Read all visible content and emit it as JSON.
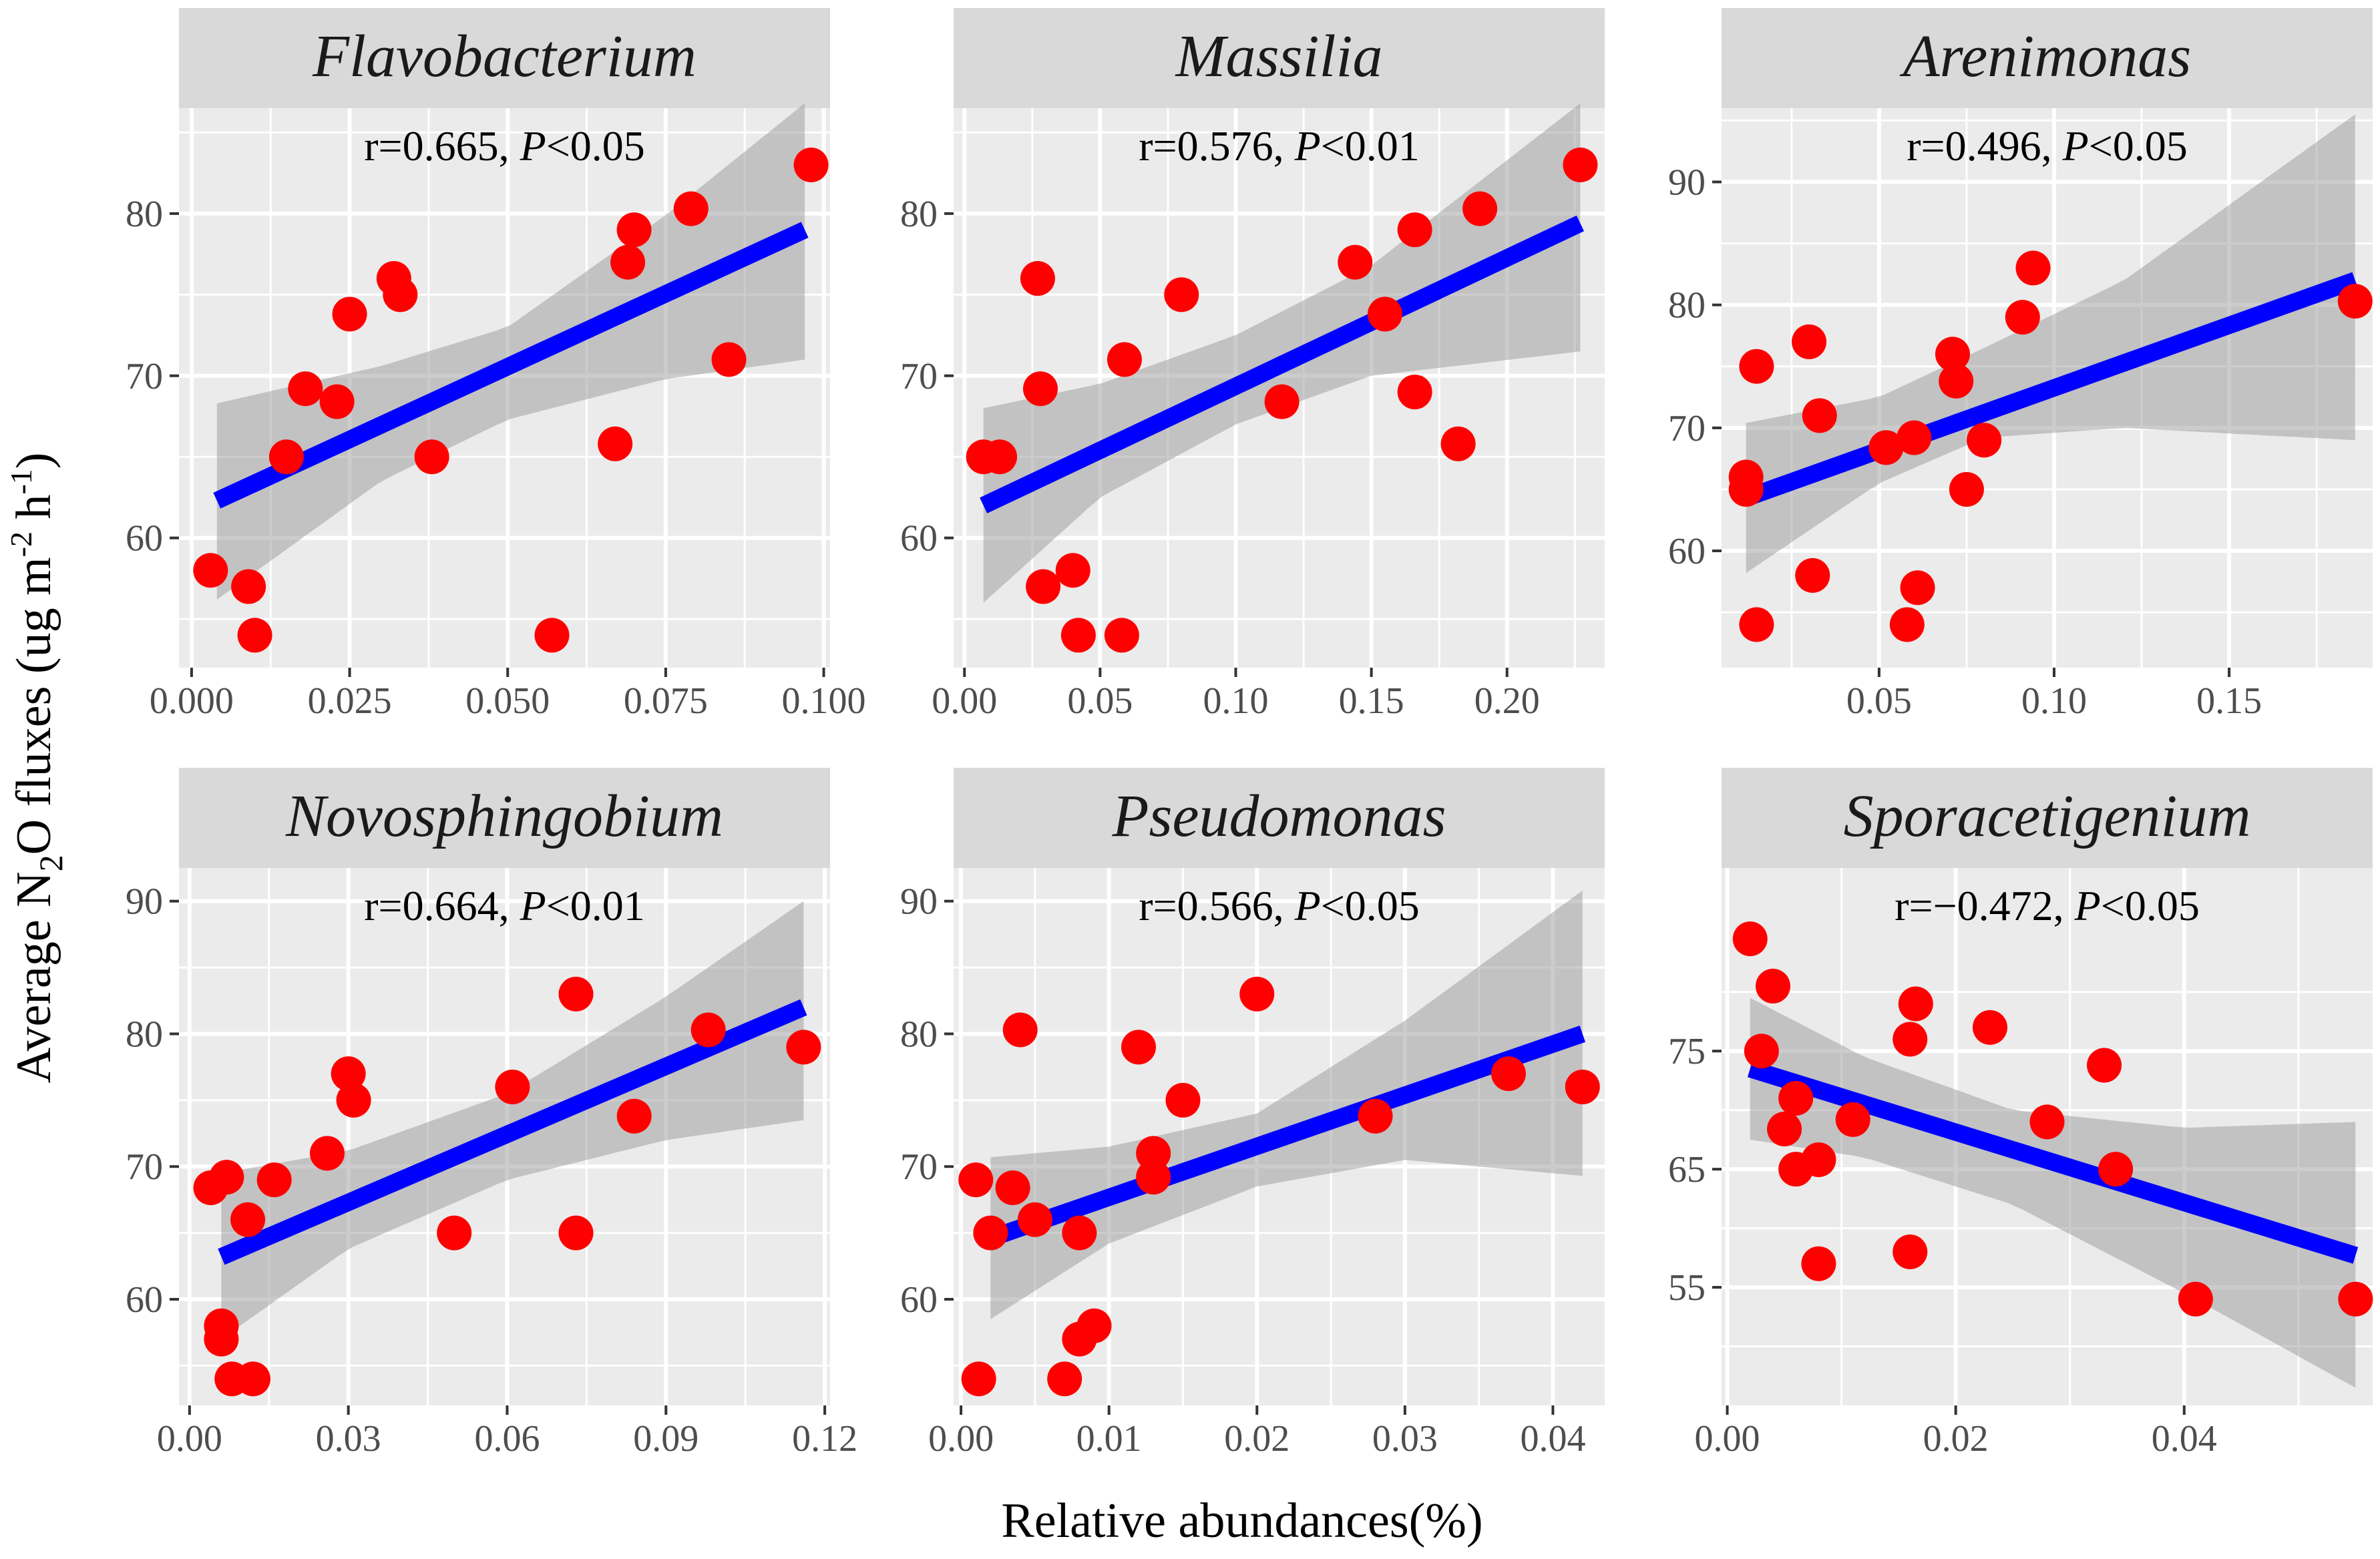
{
  "chart_data": {
    "type": "scatter",
    "layout": "facet grid 2x3 with linear fit and 95% confidence band",
    "xlabel": "Relative abundances(%)",
    "ylabel": "Average N2O fluxes (ug m-2 h-1)",
    "ylabel_parts": {
      "pre": "Average N",
      "sub": "2",
      "mid": "O fluxes (ug m",
      "sup1": "-2",
      "mid2": " h",
      "sup2": "-1",
      "post": ")"
    },
    "colors": {
      "points": "#ff0000",
      "fit": "#0000ff",
      "ci": "#999999",
      "panel": "#ebebeb",
      "strip": "#d9d9d9"
    },
    "panels": [
      {
        "title": "Flavobacterium",
        "stat_r": "r=0.665, ",
        "stat_p_label": "P",
        "stat_p_value": "<0.05",
        "xlim": [
          -0.002,
          0.101
        ],
        "ylim": [
          52,
          86.5
        ],
        "xticks": [
          0.0,
          0.025,
          0.05,
          0.075,
          0.1
        ],
        "xtick_labels": [
          "0.000",
          "0.025",
          "0.050",
          "0.075",
          "0.100"
        ],
        "yticks": [
          60,
          70,
          80
        ],
        "ytick_labels": [
          "60",
          "70",
          "80"
        ],
        "points": [
          [
            0.003,
            58
          ],
          [
            0.009,
            57
          ],
          [
            0.01,
            54
          ],
          [
            0.015,
            65
          ],
          [
            0.018,
            69.2
          ],
          [
            0.023,
            68.4
          ],
          [
            0.025,
            73.8
          ],
          [
            0.032,
            76
          ],
          [
            0.033,
            75
          ],
          [
            0.038,
            65
          ],
          [
            0.057,
            54
          ],
          [
            0.067,
            65.8
          ],
          [
            0.069,
            77
          ],
          [
            0.07,
            79
          ],
          [
            0.079,
            80.3
          ],
          [
            0.085,
            71
          ],
          [
            0.098,
            83
          ]
        ],
        "fit": {
          "x": [
            0.004,
            0.097
          ],
          "y": [
            62.3,
            79.0
          ]
        },
        "ci": {
          "x": [
            0.004,
            0.03,
            0.05,
            0.075,
            0.097
          ],
          "lower": [
            56.2,
            63.5,
            67.3,
            69.8,
            71.0
          ],
          "upper": [
            68.3,
            70.6,
            73.0,
            79.9,
            86.8
          ]
        }
      },
      {
        "title": "Massilia",
        "stat_r": "r=0.576, ",
        "stat_p_label": "P",
        "stat_p_value": "<0.01",
        "xlim": [
          -0.004,
          0.236
        ],
        "ylim": [
          52,
          86.5
        ],
        "xticks": [
          0.0,
          0.05,
          0.1,
          0.15,
          0.2
        ],
        "xtick_labels": [
          "0.00",
          "0.05",
          "0.10",
          "0.15",
          "0.20"
        ],
        "yticks": [
          60,
          70,
          80
        ],
        "ytick_labels": [
          "60",
          "70",
          "80"
        ],
        "points": [
          [
            0.007,
            65
          ],
          [
            0.013,
            65
          ],
          [
            0.027,
            76
          ],
          [
            0.028,
            69.2
          ],
          [
            0.029,
            57
          ],
          [
            0.04,
            58
          ],
          [
            0.042,
            54
          ],
          [
            0.058,
            54
          ],
          [
            0.059,
            71
          ],
          [
            0.08,
            75
          ],
          [
            0.117,
            68.4
          ],
          [
            0.144,
            77
          ],
          [
            0.155,
            73.8
          ],
          [
            0.166,
            79
          ],
          [
            0.166,
            69
          ],
          [
            0.182,
            65.8
          ],
          [
            0.19,
            80.3
          ],
          [
            0.227,
            83
          ]
        ],
        "fit": {
          "x": [
            0.007,
            0.227
          ],
          "y": [
            62.0,
            79.4
          ]
        },
        "ci": {
          "x": [
            0.007,
            0.05,
            0.1,
            0.15,
            0.227
          ],
          "lower": [
            56.0,
            62.5,
            67.0,
            70.0,
            71.5
          ],
          "upper": [
            68.0,
            69.5,
            72.5,
            76.8,
            86.8
          ]
        }
      },
      {
        "title": "Arenimonas",
        "stat_r": "r=0.496, ",
        "stat_p_label": "P",
        "stat_p_value": "<0.05",
        "xlim": [
          0.005,
          0.191
        ],
        "ylim": [
          50.5,
          96
        ],
        "xticks": [
          0.05,
          0.1,
          0.15
        ],
        "xtick_labels": [
          "0.05",
          "0.10",
          "0.15"
        ],
        "yticks": [
          60,
          70,
          80,
          90
        ],
        "ytick_labels": [
          "60",
          "70",
          "80",
          "90"
        ],
        "points": [
          [
            0.012,
            66
          ],
          [
            0.012,
            65
          ],
          [
            0.015,
            54
          ],
          [
            0.015,
            75
          ],
          [
            0.03,
            77
          ],
          [
            0.031,
            58
          ],
          [
            0.033,
            71
          ],
          [
            0.052,
            68.4
          ],
          [
            0.058,
            54
          ],
          [
            0.06,
            69.2
          ],
          [
            0.061,
            57
          ],
          [
            0.071,
            76
          ],
          [
            0.072,
            73.8
          ],
          [
            0.075,
            65
          ],
          [
            0.08,
            69
          ],
          [
            0.091,
            79
          ],
          [
            0.094,
            83
          ],
          [
            0.186,
            80.3
          ]
        ],
        "fit": {
          "x": [
            0.012,
            0.186
          ],
          "y": [
            64.3,
            82.0
          ]
        },
        "ci": {
          "x": [
            0.012,
            0.05,
            0.08,
            0.12,
            0.186
          ],
          "lower": [
            58.2,
            65.5,
            69.2,
            70.0,
            69.0
          ],
          "upper": [
            70.4,
            72.5,
            76.5,
            82.0,
            95.5
          ]
        }
      },
      {
        "title": "Novosphingobium",
        "stat_r": "r=0.664, ",
        "stat_p_label": "P",
        "stat_p_value": "<0.01",
        "xlim": [
          -0.002,
          0.121
        ],
        "ylim": [
          52,
          92.5
        ],
        "xticks": [
          0.0,
          0.03,
          0.06,
          0.09,
          0.12
        ],
        "xtick_labels": [
          "0.00",
          "0.03",
          "0.06",
          "0.09",
          "0.12"
        ],
        "yticks": [
          60,
          70,
          80,
          90
        ],
        "ytick_labels": [
          "60",
          "70",
          "80",
          "90"
        ],
        "points": [
          [
            0.004,
            68.4
          ],
          [
            0.006,
            58
          ],
          [
            0.006,
            57
          ],
          [
            0.007,
            69.2
          ],
          [
            0.008,
            54
          ],
          [
            0.011,
            66
          ],
          [
            0.012,
            54
          ],
          [
            0.016,
            69
          ],
          [
            0.026,
            71
          ],
          [
            0.03,
            77
          ],
          [
            0.031,
            75
          ],
          [
            0.05,
            65
          ],
          [
            0.061,
            76
          ],
          [
            0.073,
            83
          ],
          [
            0.073,
            65
          ],
          [
            0.084,
            73.8
          ],
          [
            0.098,
            80.3
          ],
          [
            0.116,
            79
          ]
        ],
        "fit": {
          "x": [
            0.006,
            0.116
          ],
          "y": [
            63.2,
            82.0
          ]
        },
        "ci": {
          "x": [
            0.006,
            0.03,
            0.06,
            0.09,
            0.116
          ],
          "lower": [
            57.0,
            63.8,
            69.0,
            72.0,
            73.5
          ],
          "upper": [
            69.5,
            71.2,
            75.5,
            82.8,
            90.0
          ]
        }
      },
      {
        "title": "Pseudomonas",
        "stat_r": "r=0.566, ",
        "stat_p_label": "P",
        "stat_p_value": "<0.05",
        "xlim": [
          -0.0005,
          0.0435
        ],
        "ylim": [
          52,
          92.5
        ],
        "xticks": [
          0.0,
          0.01,
          0.02,
          0.03,
          0.04
        ],
        "xtick_labels": [
          "0.00",
          "0.01",
          "0.02",
          "0.03",
          "0.04"
        ],
        "yticks": [
          60,
          70,
          80,
          90
        ],
        "ytick_labels": [
          "60",
          "70",
          "80",
          "90"
        ],
        "points": [
          [
            0.001,
            69
          ],
          [
            0.0012,
            54
          ],
          [
            0.002,
            65
          ],
          [
            0.0035,
            68.4
          ],
          [
            0.004,
            80.3
          ],
          [
            0.005,
            66
          ],
          [
            0.007,
            54
          ],
          [
            0.008,
            57
          ],
          [
            0.008,
            65
          ],
          [
            0.009,
            58
          ],
          [
            0.012,
            79
          ],
          [
            0.013,
            71
          ],
          [
            0.013,
            69.2
          ],
          [
            0.015,
            75
          ],
          [
            0.02,
            83
          ],
          [
            0.028,
            73.8
          ],
          [
            0.037,
            77
          ],
          [
            0.042,
            76
          ]
        ],
        "fit": {
          "x": [
            0.002,
            0.042
          ],
          "y": [
            64.6,
            80.0
          ]
        },
        "ci": {
          "x": [
            0.002,
            0.01,
            0.02,
            0.03,
            0.042
          ],
          "lower": [
            58.5,
            64.2,
            68.5,
            70.5,
            69.3
          ],
          "upper": [
            70.7,
            71.5,
            74.0,
            81.0,
            90.8
          ]
        }
      },
      {
        "title": "Sporacetigenium",
        "stat_r": "r=−0.472, ",
        "stat_p_label": "P",
        "stat_p_value": "<0.05",
        "xlim": [
          -0.0005,
          0.0565
        ],
        "ylim": [
          45,
          90.5
        ],
        "xticks": [
          0.0,
          0.02,
          0.04
        ],
        "xtick_labels": [
          "0.00",
          "0.02",
          "0.04"
        ],
        "yticks": [
          55,
          65,
          75
        ],
        "ytick_labels": [
          "55",
          "65",
          "75"
        ],
        "points": [
          [
            0.002,
            84.5
          ],
          [
            0.003,
            75
          ],
          [
            0.004,
            80.5
          ],
          [
            0.005,
            68.4
          ],
          [
            0.006,
            71
          ],
          [
            0.006,
            65
          ],
          [
            0.008,
            65.8
          ],
          [
            0.008,
            57
          ],
          [
            0.011,
            69.2
          ],
          [
            0.016,
            76
          ],
          [
            0.016,
            58
          ],
          [
            0.0165,
            79
          ],
          [
            0.023,
            77
          ],
          [
            0.028,
            69
          ],
          [
            0.033,
            73.8
          ],
          [
            0.034,
            65
          ],
          [
            0.041,
            54
          ],
          [
            0.055,
            54
          ]
        ],
        "fit": {
          "x": [
            0.002,
            0.055
          ],
          "y": [
            73.5,
            57.7
          ]
        },
        "ci": {
          "x": [
            0.002,
            0.012,
            0.025,
            0.04,
            0.055
          ],
          "lower": [
            67.5,
            66.0,
            62.0,
            54.5,
            46.5
          ],
          "upper": [
            79.5,
            74.5,
            70.0,
            68.5,
            69.0
          ]
        }
      }
    ]
  }
}
